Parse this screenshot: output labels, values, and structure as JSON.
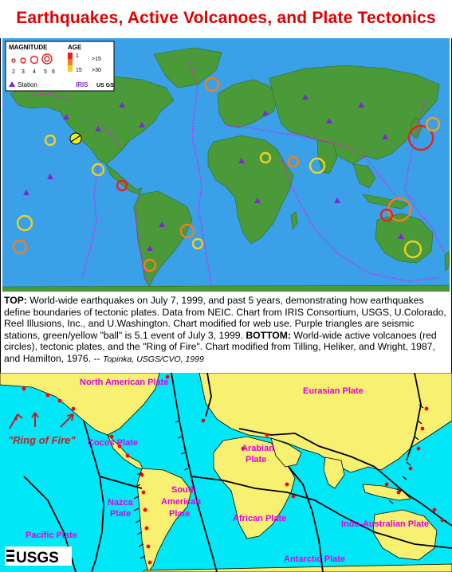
{
  "title": "Earthquakes, Active Volcanoes, and Plate Tectonics",
  "legend": {
    "magnitude_label": "MAGNITUDE",
    "age_label": "AGE",
    "magnitudes": [
      "2",
      "3",
      "4",
      "5",
      "6"
    ],
    "ages": [
      "1",
      ">15",
      "15",
      ">30"
    ],
    "station_label": "Station",
    "iris_label": "IRIS",
    "usgs_label": "US GS"
  },
  "caption": {
    "top_head": "TOP:",
    "top_text": " World-wide earthquakes on July 7, 1999, and past 5 years, demonstrating how earthquakes define boundaries of tectonic plates. Data from NEIC. Chart from IRIS Consortium, USGS, U.Colorado, Reel Illusions, Inc., and U.Washington. Chart modified for web use. Purple triangles are seismic stations, green/yellow \"ball\" is 5.1 event of July 3, 1999.",
    "bottom_head": "BOTTOM:",
    "bottom_text": " World-wide active volcanoes (red circles), tectonic plates, and the \"Ring of Fire\".  Chart modified from Tilling, Heliker, and Wright, 1987, and Hamilton, 1976.",
    "credit_dash": " -- ",
    "credit": "Topinka, USGS/CVO, 1999"
  },
  "plates": {
    "north_american": "North American Plate",
    "eurasian": "Eurasian Plate",
    "arabian_1": "Arabian",
    "arabian_2": "Plate",
    "cocos": "Cocos Plate",
    "nazca_1": "Nazca",
    "nazca_2": "Plate",
    "south_american_1": "South",
    "south_american_2": "American",
    "south_american_3": "Plate",
    "african": "African Plate",
    "indo_australian": "Indo-Australian Plate",
    "pacific": "Pacific Plate",
    "antarctic": "Antarctic Plate"
  },
  "ring_of_fire": "\"Ring of Fire\"",
  "usgs_logo": "USGS",
  "colors": {
    "title_red": "#e00000",
    "ocean": "#3aa0e8",
    "land_top": "#4a9a3a",
    "ocean_bottom": "#00e8f8",
    "land_bottom": "#f8f070",
    "plate_label": "#e000e0",
    "volcano": "#ff0000"
  }
}
